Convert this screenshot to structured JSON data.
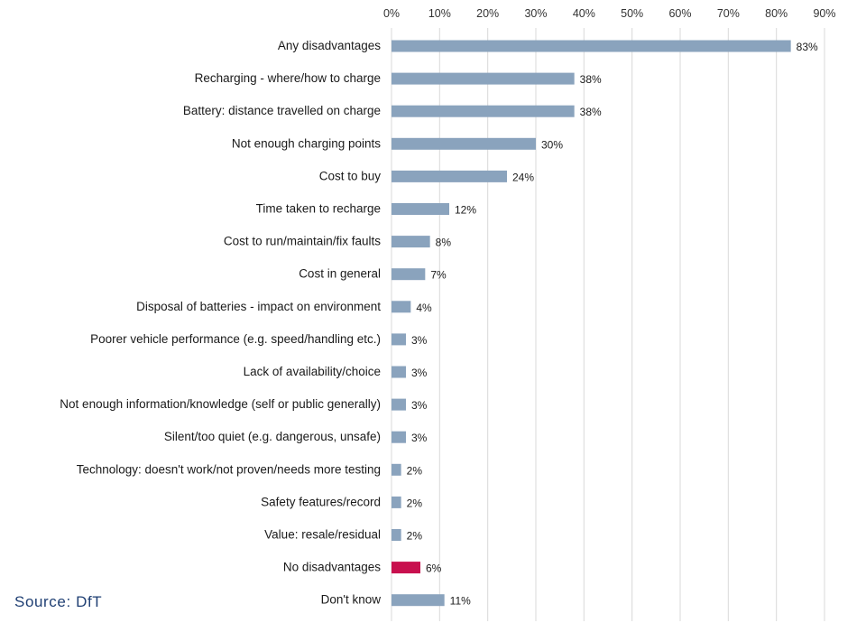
{
  "chart_data": {
    "type": "bar",
    "orientation": "horizontal",
    "categories": [
      "Any disadvantages",
      "Recharging - where/how to charge",
      "Battery: distance travelled on charge",
      "Not enough charging points",
      "Cost to buy",
      "Time taken to recharge",
      "Cost to run/maintain/fix faults",
      "Cost in general",
      "Disposal of batteries - impact on environment",
      "Poorer vehicle performance (e.g. speed/handling etc.)",
      "Lack of availability/choice",
      "Not enough information/knowledge (self or public generally)",
      "Silent/too quiet (e.g. dangerous, unsafe)",
      "Technology: doesn't work/not proven/needs more testing",
      "Safety features/record",
      "Value: resale/residual",
      "No disadvantages",
      "Don't know"
    ],
    "values": [
      83,
      38,
      38,
      30,
      24,
      12,
      8,
      7,
      4,
      3,
      3,
      3,
      3,
      2,
      2,
      2,
      6,
      11
    ],
    "data_labels": [
      "83%",
      "38%",
      "38%",
      "30%",
      "24%",
      "12%",
      "8%",
      "7%",
      "4%",
      "3%",
      "3%",
      "3%",
      "3%",
      "2%",
      "2%",
      "2%",
      "6%",
      "11%"
    ],
    "bar_colors": [
      "#8aa3bd",
      "#8aa3bd",
      "#8aa3bd",
      "#8aa3bd",
      "#8aa3bd",
      "#8aa3bd",
      "#8aa3bd",
      "#8aa3bd",
      "#8aa3bd",
      "#8aa3bd",
      "#8aa3bd",
      "#8aa3bd",
      "#8aa3bd",
      "#8aa3bd",
      "#8aa3bd",
      "#8aa3bd",
      "#c8104e",
      "#8aa3bd"
    ],
    "x_ticks": [
      0,
      10,
      20,
      30,
      40,
      50,
      60,
      70,
      80,
      90
    ],
    "x_tick_labels": [
      "0%",
      "10%",
      "20%",
      "30%",
      "40%",
      "50%",
      "60%",
      "70%",
      "80%",
      "90%"
    ],
    "xlim": [
      0,
      90
    ],
    "x_axis_position": "top",
    "grid": "vertical",
    "gridline_color": "#d9d9d9",
    "legend": "none",
    "title": "",
    "xlabel": "",
    "ylabel": ""
  },
  "source": "Source: DfT"
}
